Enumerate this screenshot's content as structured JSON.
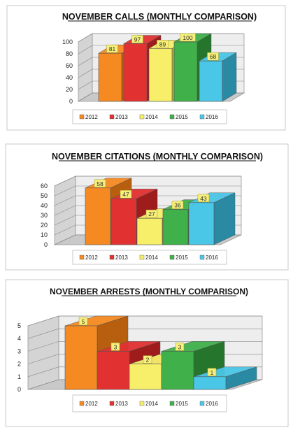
{
  "chart_data": [
    {
      "type": "bar",
      "title": "NOVEMBER CALLS (MONTHLY COMPARISON)",
      "categories": [
        "2012",
        "2013",
        "2014",
        "2015",
        "2016"
      ],
      "values": [
        81,
        97,
        89,
        100,
        68
      ],
      "value_labels": [
        "81",
        "97",
        "89",
        "100",
        "68"
      ],
      "ylim": [
        0,
        100
      ],
      "yticks": [
        "0",
        "20",
        "40",
        "60",
        "80",
        "100"
      ],
      "legend": "bottom"
    },
    {
      "type": "bar",
      "title": "NOVEMBER CITATIONS (MONTHLY COMPARISON)",
      "categories": [
        "2012",
        "2013",
        "2014",
        "2015",
        "2016"
      ],
      "values": [
        58,
        47,
        27,
        36,
        43
      ],
      "value_labels": [
        "58",
        "47",
        "27",
        "36",
        "43"
      ],
      "ylim": [
        0,
        60
      ],
      "yticks": [
        "0",
        "10",
        "20",
        "30",
        "40",
        "50",
        "60"
      ],
      "legend": "bottom"
    },
    {
      "type": "bar",
      "title": "NOVEMBER ARRESTS (MONTHLY COMPARISON)",
      "categories": [
        "2012",
        "2013",
        "2014",
        "2015",
        "2016"
      ],
      "values": [
        5,
        3,
        2,
        3,
        1
      ],
      "value_labels": [
        "5",
        "3",
        "2",
        "3",
        "1"
      ],
      "ylim": [
        0,
        5
      ],
      "yticks": [
        "0",
        "1",
        "2",
        "3",
        "4",
        "5"
      ],
      "legend": "bottom"
    }
  ],
  "colors": {
    "series": [
      "#f58a22",
      "#e23131",
      "#f7ef6a",
      "#3fb04a",
      "#4ac6e6"
    ],
    "series_dark": [
      "#b85e0f",
      "#9e1c1c",
      "#b5ad3a",
      "#25752d",
      "#2a8aa3"
    ],
    "label_box": "#f6ef7a",
    "floor": "#c9c9c9",
    "back_wall": "#eeeeee"
  }
}
